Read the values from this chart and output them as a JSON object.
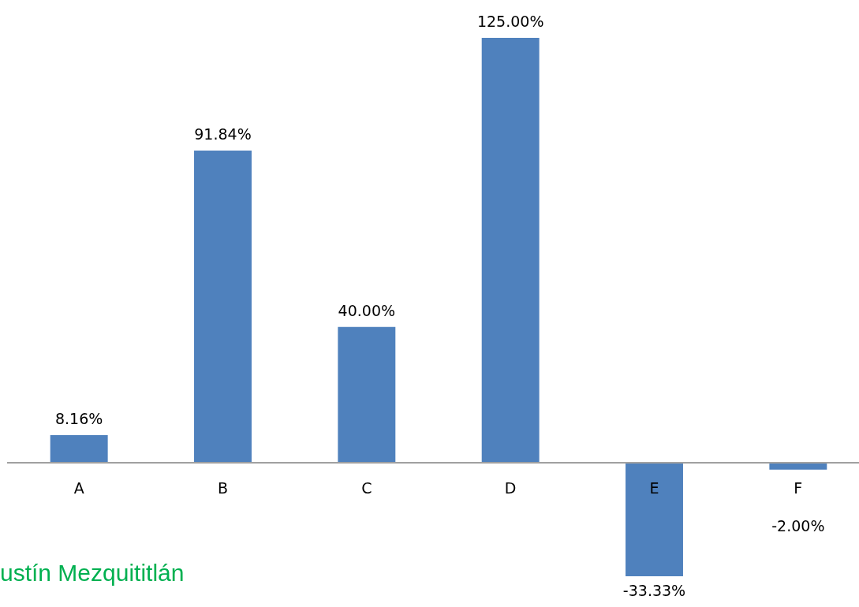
{
  "chart_data": {
    "type": "bar",
    "categories": [
      "A",
      "B",
      "C",
      "D",
      "E",
      "F"
    ],
    "values": [
      8.16,
      91.84,
      40.0,
      125.0,
      -33.33,
      -2.0
    ],
    "color": "#4f81bd",
    "value_labels": [
      "8.16%",
      "91.84%",
      "40.00%",
      "125.00%",
      "-33.33%",
      "-2.00%"
    ],
    "annotations": [
      "ustín Mezquititlán"
    ]
  }
}
